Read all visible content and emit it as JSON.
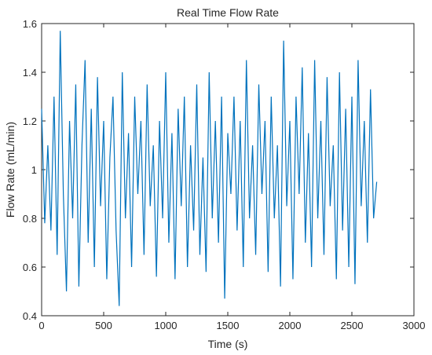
{
  "chart_data": {
    "type": "line",
    "title": "Real Time Flow Rate",
    "xlabel": "Time (s)",
    "ylabel": "Flow Rate (mL/min)",
    "x": [
      0,
      25,
      50,
      75,
      100,
      125,
      150,
      175,
      200,
      225,
      250,
      275,
      300,
      325,
      350,
      375,
      400,
      425,
      450,
      475,
      500,
      525,
      550,
      575,
      600,
      625,
      650,
      675,
      700,
      725,
      750,
      775,
      800,
      825,
      850,
      875,
      900,
      925,
      950,
      975,
      1000,
      1025,
      1050,
      1075,
      1100,
      1125,
      1150,
      1175,
      1200,
      1225,
      1250,
      1275,
      1300,
      1325,
      1350,
      1375,
      1400,
      1425,
      1450,
      1475,
      1500,
      1525,
      1550,
      1575,
      1600,
      1625,
      1650,
      1675,
      1700,
      1725,
      1750,
      1775,
      1800,
      1825,
      1850,
      1875,
      1900,
      1925,
      1950,
      1975,
      2000,
      2025,
      2050,
      2075,
      2100,
      2125,
      2150,
      2175,
      2200,
      2225,
      2250,
      2275,
      2300,
      2325,
      2350,
      2375,
      2400,
      2425,
      2450,
      2475,
      2500,
      2525,
      2550,
      2575,
      2600,
      2625,
      2650,
      2675,
      2700
    ],
    "series": [
      {
        "color": "#0072bd",
        "values": [
          1.25,
          0.78,
          1.1,
          0.75,
          1.3,
          0.65,
          1.57,
          0.9,
          0.5,
          1.2,
          0.8,
          1.35,
          0.52,
          1.1,
          1.45,
          0.7,
          1.25,
          0.6,
          1.38,
          0.85,
          1.2,
          0.55,
          1.05,
          1.3,
          0.75,
          0.44,
          1.4,
          0.8,
          1.15,
          0.6,
          1.3,
          0.9,
          1.2,
          0.65,
          1.35,
          0.85,
          1.1,
          0.56,
          1.2,
          0.8,
          1.4,
          0.7,
          1.15,
          0.55,
          1.25,
          0.85,
          1.3,
          0.6,
          1.1,
          0.75,
          1.35,
          0.65,
          1.05,
          0.58,
          1.4,
          0.8,
          1.2,
          0.7,
          1.3,
          0.47,
          1.15,
          0.9,
          1.3,
          0.75,
          1.2,
          0.6,
          1.45,
          0.8,
          1.1,
          0.65,
          1.35,
          0.9,
          1.2,
          0.58,
          1.3,
          0.8,
          1.1,
          0.52,
          1.53,
          0.85,
          1.2,
          0.55,
          1.3,
          0.9,
          1.42,
          0.7,
          1.15,
          0.6,
          1.45,
          0.8,
          1.2,
          0.65,
          1.38,
          0.85,
          1.1,
          0.55,
          1.4,
          0.75,
          1.25,
          0.6,
          1.3,
          0.53,
          1.45,
          0.85,
          1.2,
          0.7,
          1.33,
          0.8,
          0.95
        ]
      }
    ],
    "xlim": [
      0,
      3000
    ],
    "xticks": [
      0,
      500,
      1000,
      1500,
      2000,
      2500,
      3000
    ],
    "ylim": [
      0.4,
      1.6
    ],
    "yticks": [
      0.4,
      0.6,
      0.8,
      1,
      1.2,
      1.4,
      1.6
    ]
  }
}
